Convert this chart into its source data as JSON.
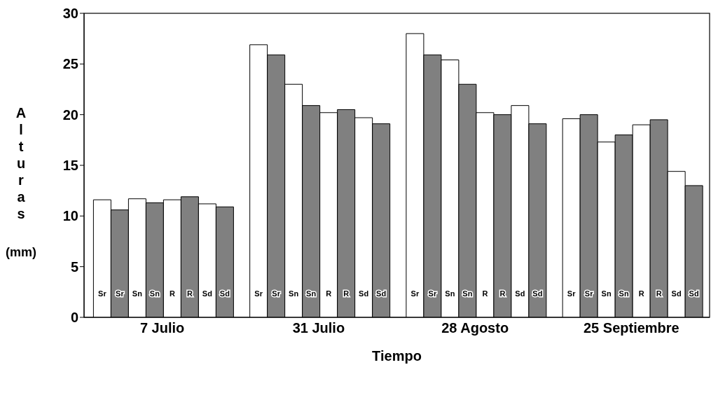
{
  "chart_data": {
    "type": "bar",
    "xlabel": "Tiempo",
    "ylabel": "Alturas (mm)",
    "categories": [
      "7 Julio",
      "31 Julio",
      "28 Agosto",
      "25 Septiembre"
    ],
    "series": [
      {
        "name": "Sr",
        "color": "#ffffff",
        "values": [
          11.6,
          26.9,
          28.0,
          19.6
        ]
      },
      {
        "name": "Sr",
        "color": "#808080",
        "values": [
          10.6,
          25.9,
          25.9,
          20.0
        ]
      },
      {
        "name": "Sn",
        "color": "#ffffff",
        "values": [
          11.7,
          23.0,
          25.4,
          17.3
        ]
      },
      {
        "name": "Sn",
        "color": "#808080",
        "values": [
          11.3,
          20.9,
          23.0,
          18.0
        ]
      },
      {
        "name": "R",
        "color": "#ffffff",
        "values": [
          11.6,
          20.2,
          20.2,
          19.0
        ]
      },
      {
        "name": "R",
        "color": "#808080",
        "values": [
          11.9,
          20.5,
          20.0,
          19.5
        ]
      },
      {
        "name": "Sd",
        "color": "#ffffff",
        "values": [
          11.2,
          19.7,
          20.9,
          14.4
        ]
      },
      {
        "name": "Sd",
        "color": "#808080",
        "values": [
          10.9,
          19.1,
          19.1,
          13.0
        ]
      }
    ],
    "ylim": [
      0,
      30
    ],
    "yticks": [
      0,
      5,
      10,
      15,
      20,
      25,
      30
    ]
  }
}
